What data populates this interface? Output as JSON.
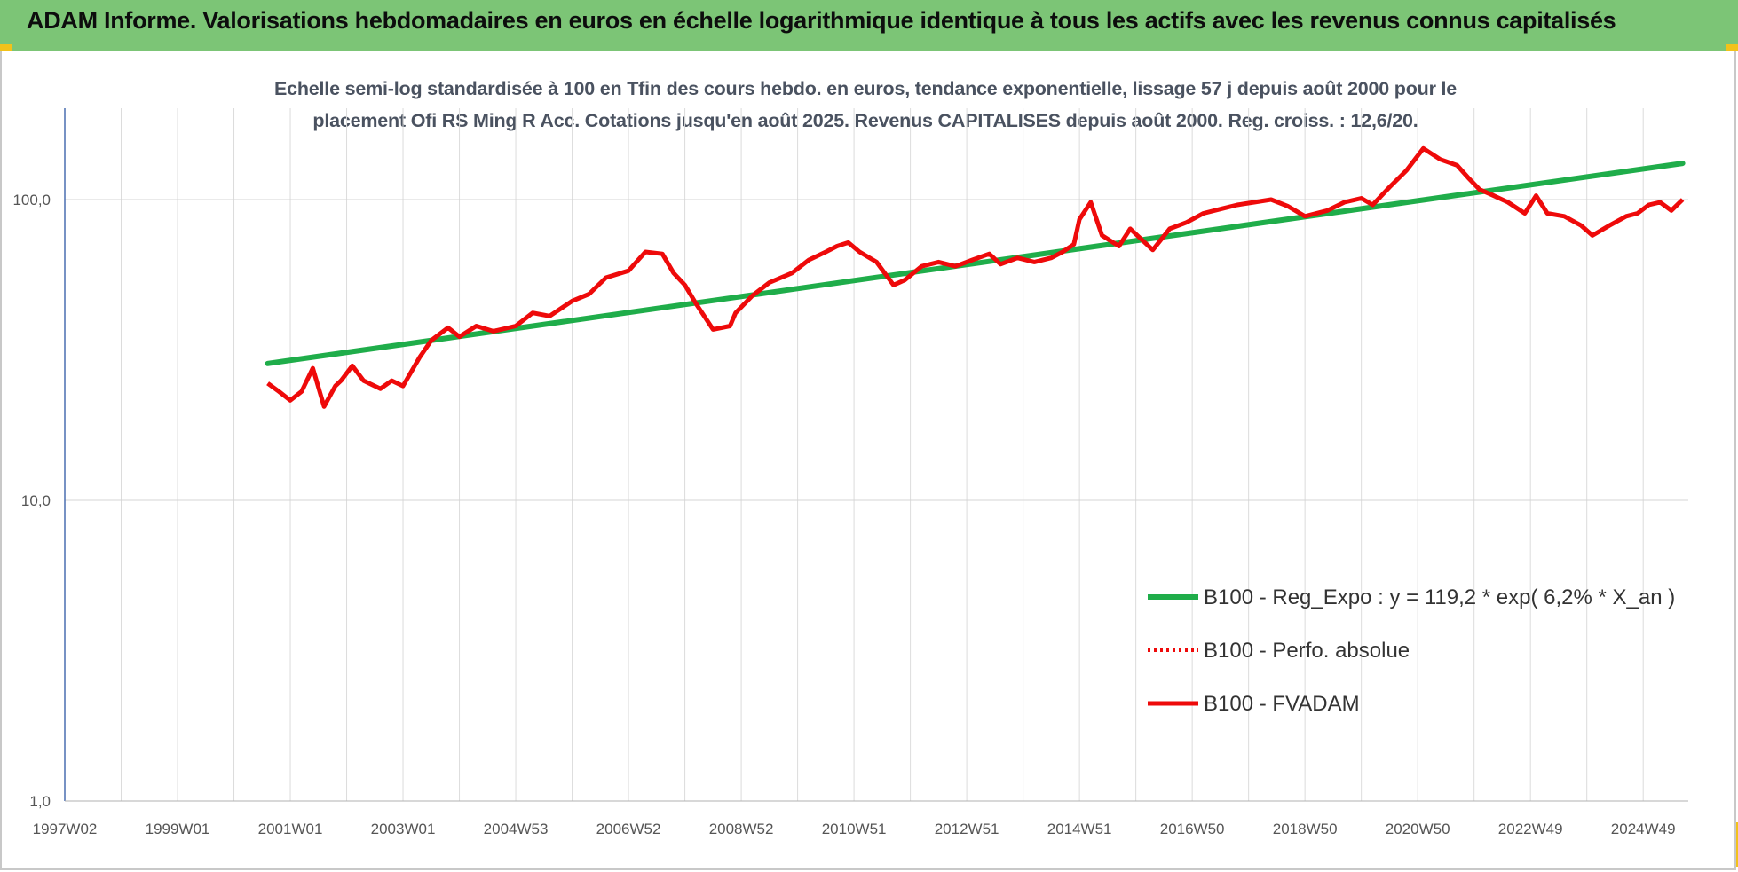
{
  "header": {
    "title": "ADAM Informe. Valorisations hebdomadaires en euros en échelle logarithmique identique à tous les actifs avec les revenus connus capitalisés"
  },
  "colors": {
    "header_bg": "#7cc576",
    "trend": "#1fad4a",
    "fvadam": "#ee0a0a",
    "perf": "#ee0a0a",
    "corner": "#f2c21a"
  },
  "chart_data": {
    "type": "line",
    "title": "",
    "subtitle_lines": [
      "Echelle semi-log standardisée à 100 en Tfin des cours hebdo. en euros, tendance exponentielle, lissage 57 j depuis août 2000 pour le",
      "placement Ofi RS Ming R Acc. Cotations jusqu'en août 2025. Revenus CAPITALISES depuis août 2000. Reg. croiss. : 12,6/20."
    ],
    "xlabel": "",
    "ylabel": "",
    "y_scale": "log10",
    "ylim": [
      1,
      200
    ],
    "y_ticks": [
      "1,0",
      "10,0",
      "100,0"
    ],
    "y_tick_values": [
      1,
      10,
      100
    ],
    "x_range": [
      1997.0,
      2025.8
    ],
    "x_ticks": [
      "1997W02",
      "1999W01",
      "2001W01",
      "2003W01",
      "2004W53",
      "2006W52",
      "2008W52",
      "2010W51",
      "2012W51",
      "2014W51",
      "2016W50",
      "2018W50",
      "2020W50",
      "2022W49",
      "2024W49"
    ],
    "x_tick_years": [
      1997.0,
      1999.0,
      2001.0,
      2003.0,
      2005.0,
      2007.0,
      2009.0,
      2011.0,
      2013.0,
      2015.0,
      2017.0,
      2019.0,
      2021.0,
      2023.0,
      2025.0
    ],
    "grid": true,
    "legend_position": "bottom-right",
    "legend": [
      {
        "label": "B100 - Reg_Expo : y = 119,2 * exp( 6,2% *  X_an )",
        "style": "solid-green"
      },
      {
        "label": "B100 - Perfo. absolue",
        "style": "dotted-red"
      },
      {
        "label": "B100 - FVADAM",
        "style": "solid-red"
      }
    ],
    "series": [
      {
        "name": "B100 - Reg_Expo : y = 119,2 * exp( 6,2% *  X_an )",
        "x": [
          2000.6,
          2025.7
        ],
        "y": [
          28.5,
          132
        ]
      },
      {
        "name": "B100 - FVADAM",
        "x": [
          2000.6,
          2000.8,
          2001.0,
          2001.2,
          2001.4,
          2001.6,
          2001.8,
          2001.9,
          2002.1,
          2002.3,
          2002.6,
          2002.8,
          2003.0,
          2003.3,
          2003.5,
          2003.8,
          2004.0,
          2004.3,
          2004.6,
          2005.0,
          2005.3,
          2005.6,
          2006.0,
          2006.3,
          2006.6,
          2007.0,
          2007.3,
          2007.6,
          2007.8,
          2008.0,
          2008.2,
          2008.5,
          2008.8,
          2008.9,
          2009.2,
          2009.5,
          2009.9,
          2010.2,
          2010.5,
          2010.7,
          2010.9,
          2011.1,
          2011.4,
          2011.7,
          2011.9,
          2012.2,
          2012.5,
          2012.8,
          2013.1,
          2013.4,
          2013.6,
          2013.9,
          2014.2,
          2014.5,
          2014.7,
          2014.9,
          2015.0,
          2015.2,
          2015.4,
          2015.7,
          2015.9,
          2016.3,
          2016.6,
          2016.9,
          2017.2,
          2017.5,
          2017.8,
          2018.1,
          2018.4,
          2018.7,
          2019.0,
          2019.4,
          2019.7,
          2020.0,
          2020.2,
          2020.5,
          2020.8,
          2021.1,
          2021.4,
          2021.7,
          2021.9,
          2022.1,
          2022.3,
          2022.6,
          2022.9,
          2023.1,
          2023.3,
          2023.6,
          2023.9,
          2024.1,
          2024.4,
          2024.7,
          2024.9,
          2025.1,
          2025.3,
          2025.5,
          2025.7
        ],
        "y": [
          24.5,
          23.0,
          21.5,
          23.0,
          27.5,
          20.5,
          24.0,
          25.0,
          28.0,
          25.0,
          23.5,
          25.0,
          24.0,
          30.0,
          34.0,
          37.5,
          35.0,
          38.0,
          36.5,
          38.0,
          42.0,
          41.0,
          46.0,
          48.5,
          55.0,
          58.0,
          67.0,
          66.0,
          57.0,
          52.0,
          45.0,
          37.0,
          38.0,
          42.0,
          48.0,
          53.0,
          57.0,
          63.0,
          67.0,
          70.0,
          72.0,
          67.0,
          62.0,
          52.0,
          54.0,
          60.0,
          62.0,
          60.0,
          63.0,
          66.0,
          61.0,
          64.0,
          62.0,
          64.0,
          67.0,
          71.0,
          86.0,
          98.0,
          76.0,
          70.0,
          80.0,
          68.0,
          80.0,
          84.0,
          90.0,
          93.0,
          96.0,
          98.0,
          100.0,
          95.0,
          88.0,
          92.0,
          98.0,
          101.0,
          96.0,
          110.0,
          125.0,
          148.0,
          136.0,
          130.0,
          118.0,
          108.0,
          104.0,
          98.0,
          90.0,
          103.0,
          90.0,
          88.0,
          82.0,
          76.0,
          82.0,
          88.0,
          90.0,
          96.0,
          98.0,
          92.0,
          100.0
        ]
      }
    ]
  }
}
